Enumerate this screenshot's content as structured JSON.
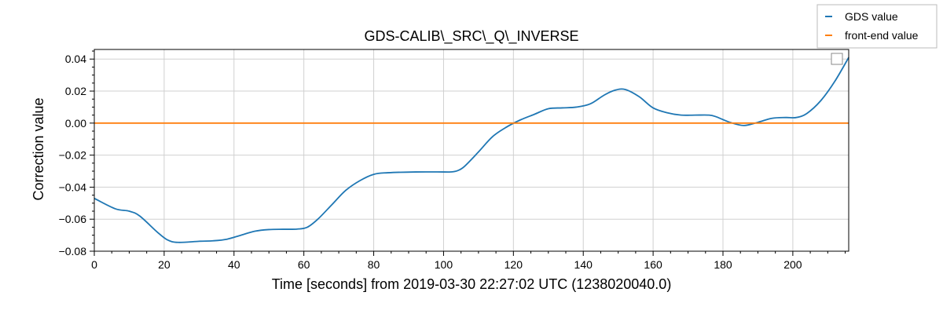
{
  "chart_data": {
    "type": "line",
    "title": "GDS-CALIB\\_SRC\\_Q\\_INVERSE",
    "xlabel": "Time [seconds] from 2019-03-30 22:27:02 UTC (1238020040.0)",
    "ylabel": "Correction value",
    "xlim": [
      0,
      216
    ],
    "ylim": [
      -0.08,
      0.046
    ],
    "x_ticks": [
      0,
      20,
      40,
      60,
      80,
      100,
      120,
      140,
      160,
      180,
      200
    ],
    "x_tick_labels": [
      "0",
      "20",
      "40",
      "60",
      "80",
      "100",
      "120",
      "140",
      "160",
      "180",
      "200"
    ],
    "y_ticks": [
      -0.08,
      -0.06,
      -0.04,
      -0.02,
      0.0,
      0.02,
      0.04
    ],
    "y_tick_labels": [
      "−0.08",
      "−0.06",
      "−0.04",
      "−0.02",
      "0.00",
      "0.02",
      "0.04"
    ],
    "grid": true,
    "legend_placement": "top-right, outside plot",
    "series": [
      {
        "name": "GDS value",
        "color": "#1f77b4",
        "x": [
          0,
          6,
          10,
          13,
          18,
          21,
          24,
          30,
          34,
          38,
          42,
          46,
          50,
          54,
          58,
          61,
          64,
          68,
          72,
          76,
          80,
          84,
          92,
          100,
          102,
          104,
          106,
          110,
          114,
          118,
          122,
          126,
          130,
          134,
          138,
          142,
          146,
          149,
          152,
          156,
          160,
          164,
          168,
          172,
          176,
          178,
          182,
          186,
          190,
          194,
          198,
          201,
          204,
          208,
          212,
          216
        ],
        "y": [
          -0.047,
          -0.0535,
          -0.055,
          -0.058,
          -0.068,
          -0.073,
          -0.0745,
          -0.0738,
          -0.0735,
          -0.0725,
          -0.07,
          -0.0675,
          -0.0665,
          -0.0663,
          -0.0662,
          -0.065,
          -0.06,
          -0.051,
          -0.042,
          -0.036,
          -0.032,
          -0.031,
          -0.0305,
          -0.0305,
          -0.0305,
          -0.0297,
          -0.027,
          -0.018,
          -0.0085,
          -0.0025,
          0.002,
          0.0055,
          0.009,
          0.0095,
          0.01,
          0.012,
          0.0175,
          0.0205,
          0.021,
          0.0165,
          0.0095,
          0.0065,
          0.005,
          0.005,
          0.005,
          0.004,
          0.0005,
          -0.0015,
          0.0005,
          0.003,
          0.0035,
          0.0035,
          0.006,
          0.014,
          0.026,
          0.041
        ]
      },
      {
        "name": "front-end value",
        "color": "#ff7f0e",
        "x": [
          0,
          216
        ],
        "y": [
          0.0,
          0.0
        ]
      }
    ]
  },
  "legend": {
    "items": [
      {
        "label": "GDS value",
        "color": "#1f77b4"
      },
      {
        "label": "front-end value",
        "color": "#ff7f0e"
      }
    ]
  }
}
